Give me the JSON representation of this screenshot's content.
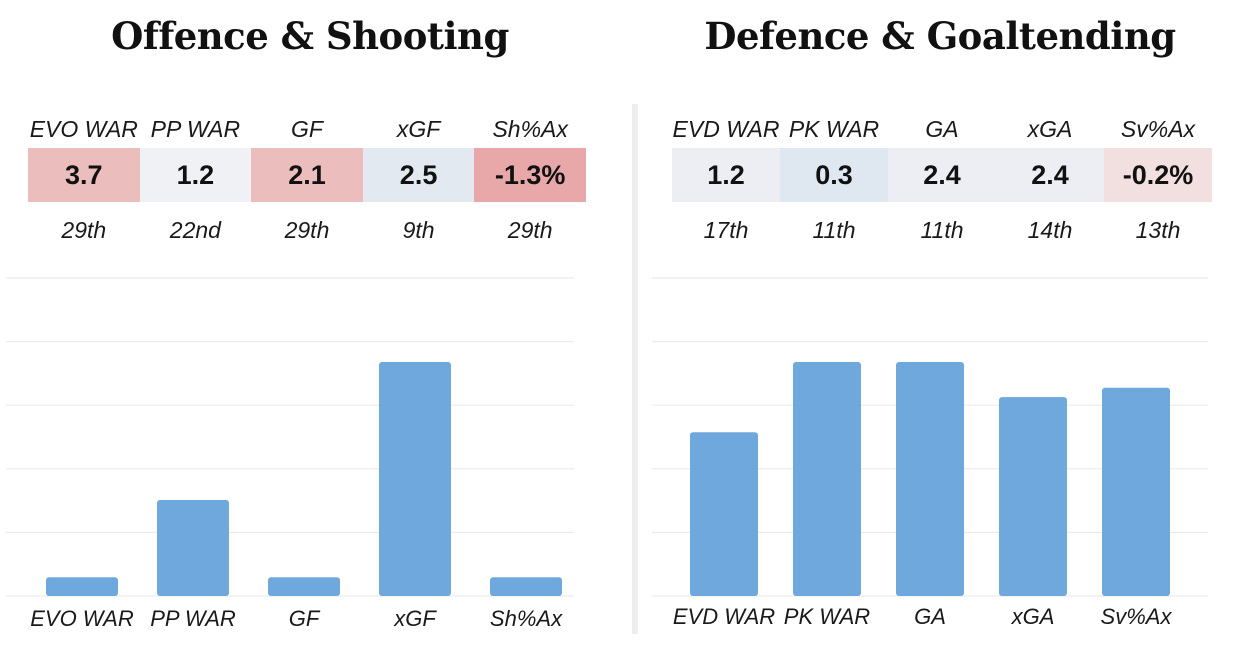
{
  "panels": [
    {
      "title": "Offence & Shooting",
      "stats": [
        {
          "label": "EVO WAR",
          "value": "3.7",
          "rank": "29th",
          "color": "#ebbdbd"
        },
        {
          "label": "PP WAR",
          "value": "1.2",
          "rank": "22nd",
          "color": "#eff1f4"
        },
        {
          "label": "GF",
          "value": "2.1",
          "rank": "29th",
          "color": "#ebbdbd"
        },
        {
          "label": "xGF",
          "value": "2.5",
          "rank": "9th",
          "color": "#e2e9f1"
        },
        {
          "label": "Sh%Ax",
          "value": "-1.3%",
          "rank": "29th",
          "color": "#e8a8aa"
        }
      ]
    },
    {
      "title": "Defence & Goaltending",
      "stats": [
        {
          "label": "EVD WAR",
          "value": "1.2",
          "rank": "17th",
          "color": "#eceef3"
        },
        {
          "label": "PK WAR",
          "value": "0.3",
          "rank": "11th",
          "color": "#dfe8f1"
        },
        {
          "label": "GA",
          "value": "2.4",
          "rank": "11th",
          "color": "#eceef3"
        },
        {
          "label": "xGA",
          "value": "2.4",
          "rank": "14th",
          "color": "#eceef3"
        },
        {
          "label": "Sv%Ax",
          "value": "-0.2%",
          "rank": "13th",
          "color": "#f2e0e1"
        }
      ]
    }
  ],
  "chart_data": [
    {
      "type": "bar",
      "categories": [
        "EVO WAR",
        "PP WAR",
        "GF",
        "xGF",
        "Sh%Ax"
      ],
      "values": [
        0.08,
        0.41,
        0.08,
        1.0,
        0.08
      ],
      "ylim": [
        0,
        1.0
      ],
      "grid": true,
      "bar_color": "#6fa8dc"
    },
    {
      "type": "bar",
      "categories": [
        "EVD WAR",
        "PK WAR",
        "GA",
        "xGA",
        "Sv%Ax"
      ],
      "values": [
        0.7,
        1.0,
        1.0,
        0.85,
        0.89
      ],
      "ylim": [
        0,
        1.0
      ],
      "grid": true,
      "bar_color": "#6fa8dc"
    }
  ]
}
